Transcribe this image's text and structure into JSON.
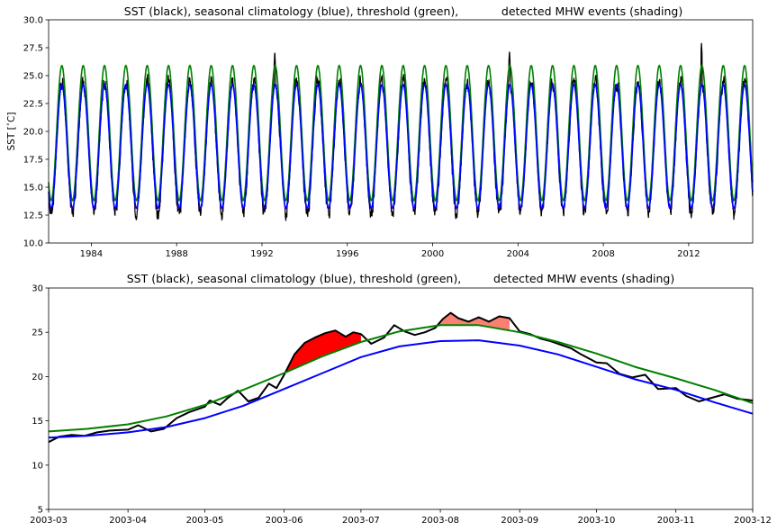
{
  "chart_data": [
    {
      "type": "line",
      "title": "SST (black), seasonal climatology (blue), threshold (green),            detected MHW events (shading)",
      "ylabel": "SST [$^\\circ$C]",
      "xlabel": "",
      "xlim": [
        1982.0,
        2015.0
      ],
      "ylim": [
        10.0,
        30.0
      ],
      "xticks": [
        "1984",
        "1988",
        "1992",
        "1996",
        "2000",
        "2004",
        "2008",
        "2012"
      ],
      "yticks": [
        "10.0",
        "12.5",
        "15.0",
        "17.5",
        "20.0",
        "22.5",
        "25.0",
        "27.5",
        "30.0"
      ],
      "grid": false,
      "series": [
        {
          "name": "SST",
          "color": "#000000",
          "annual_min": 12.8,
          "annual_max": 24.5,
          "noise_amplitude": 1.2,
          "peak_extremes": [
            {
              "x": 1992.6,
              "y": 27.2
            },
            {
              "x": 2003.6,
              "y": 27.3
            },
            {
              "x": 2012.6,
              "y": 28.0
            }
          ]
        },
        {
          "name": "seasonal climatology",
          "color": "#0000ff",
          "annual_min": 13.1,
          "annual_max": 24.2
        },
        {
          "name": "threshold",
          "color": "#008000",
          "annual_min": 13.8,
          "annual_max": 25.9
        }
      ]
    },
    {
      "type": "line",
      "title": "SST (black), seasonal climatology (blue), threshold (green),         detected MHW events (shading)",
      "xlabel": "",
      "ylabel": "",
      "xlim": [
        "2003-03",
        "2003-12"
      ],
      "ylim": [
        5,
        30
      ],
      "xticks": [
        "2003-03",
        "2003-04",
        "2003-05",
        "2003-06",
        "2003-07",
        "2003-08",
        "2003-09",
        "2003-10",
        "2003-11",
        "2003-12"
      ],
      "yticks": [
        "5",
        "10",
        "15",
        "20",
        "25",
        "30"
      ],
      "grid": false,
      "series": [
        {
          "name": "threshold",
          "color": "#008000",
          "x": [
            "2003-03-01",
            "2003-03-16",
            "2003-04-01",
            "2003-04-16",
            "2003-05-01",
            "2003-05-16",
            "2003-06-01",
            "2003-06-16",
            "2003-07-01",
            "2003-07-16",
            "2003-08-01",
            "2003-08-16",
            "2003-09-01",
            "2003-09-16",
            "2003-10-01",
            "2003-10-16",
            "2003-11-01",
            "2003-11-16",
            "2003-12-01"
          ],
          "values": [
            13.8,
            14.1,
            14.6,
            15.5,
            16.8,
            18.5,
            20.4,
            22.3,
            23.9,
            25.1,
            25.8,
            25.8,
            25.0,
            23.9,
            22.6,
            21.1,
            19.8,
            18.5,
            17.0
          ]
        },
        {
          "name": "seasonal climatology",
          "color": "#0000ff",
          "x": [
            "2003-03-01",
            "2003-03-16",
            "2003-04-01",
            "2003-04-16",
            "2003-05-01",
            "2003-05-16",
            "2003-06-01",
            "2003-06-16",
            "2003-07-01",
            "2003-07-16",
            "2003-08-01",
            "2003-08-16",
            "2003-09-01",
            "2003-09-16",
            "2003-10-01",
            "2003-10-16",
            "2003-11-01",
            "2003-11-16",
            "2003-12-01"
          ],
          "values": [
            13.1,
            13.3,
            13.7,
            14.3,
            15.3,
            16.7,
            18.6,
            20.4,
            22.2,
            23.4,
            24.0,
            24.1,
            23.5,
            22.5,
            21.1,
            19.7,
            18.5,
            17.1,
            15.8
          ]
        },
        {
          "name": "SST",
          "color": "#000000",
          "x": [
            "2003-03-01",
            "2003-03-05",
            "2003-03-10",
            "2003-03-15",
            "2003-03-20",
            "2003-03-25",
            "2003-04-01",
            "2003-04-05",
            "2003-04-10",
            "2003-04-15",
            "2003-04-20",
            "2003-04-25",
            "2003-05-01",
            "2003-05-03",
            "2003-05-07",
            "2003-05-10",
            "2003-05-14",
            "2003-05-18",
            "2003-05-22",
            "2003-05-26",
            "2003-05-29",
            "2003-06-01",
            "2003-06-05",
            "2003-06-09",
            "2003-06-13",
            "2003-06-17",
            "2003-06-21",
            "2003-06-25",
            "2003-06-28",
            "2003-07-01",
            "2003-07-05",
            "2003-07-10",
            "2003-07-14",
            "2003-07-18",
            "2003-07-22",
            "2003-07-26",
            "2003-07-30",
            "2003-08-02",
            "2003-08-05",
            "2003-08-08",
            "2003-08-12",
            "2003-08-16",
            "2003-08-20",
            "2003-08-24",
            "2003-08-28",
            "2003-09-01",
            "2003-09-05",
            "2003-09-09",
            "2003-09-13",
            "2003-09-17",
            "2003-09-21",
            "2003-09-25",
            "2003-10-01",
            "2003-10-05",
            "2003-10-10",
            "2003-10-15",
            "2003-10-20",
            "2003-10-25",
            "2003-11-01",
            "2003-11-05",
            "2003-11-10",
            "2003-11-15",
            "2003-11-20",
            "2003-11-25",
            "2003-12-01"
          ],
          "values": [
            12.6,
            13.2,
            13.4,
            13.3,
            13.7,
            13.9,
            14.0,
            14.5,
            13.8,
            14.1,
            15.3,
            16.0,
            16.6,
            17.3,
            16.8,
            17.6,
            18.4,
            17.2,
            17.6,
            19.2,
            18.7,
            20.2,
            22.5,
            23.8,
            24.4,
            24.9,
            25.2,
            24.5,
            25.0,
            24.8,
            23.7,
            24.4,
            25.8,
            25.1,
            24.7,
            25.0,
            25.5,
            26.5,
            27.2,
            26.6,
            26.2,
            26.7,
            26.2,
            26.8,
            26.6,
            25.1,
            24.8,
            24.3,
            24.0,
            23.6,
            23.2,
            22.5,
            21.6,
            21.5,
            20.3,
            19.9,
            20.2,
            18.6,
            18.7,
            17.8,
            17.2,
            17.6,
            18.0,
            17.5,
            17.3
          ]
        }
      ],
      "events": [
        {
          "start": "2003-06-01",
          "end": "2003-07-01",
          "color": "#ff0000"
        },
        {
          "start": "2003-07-31",
          "end": "2003-08-28",
          "color": "#fa8072"
        }
      ]
    }
  ]
}
